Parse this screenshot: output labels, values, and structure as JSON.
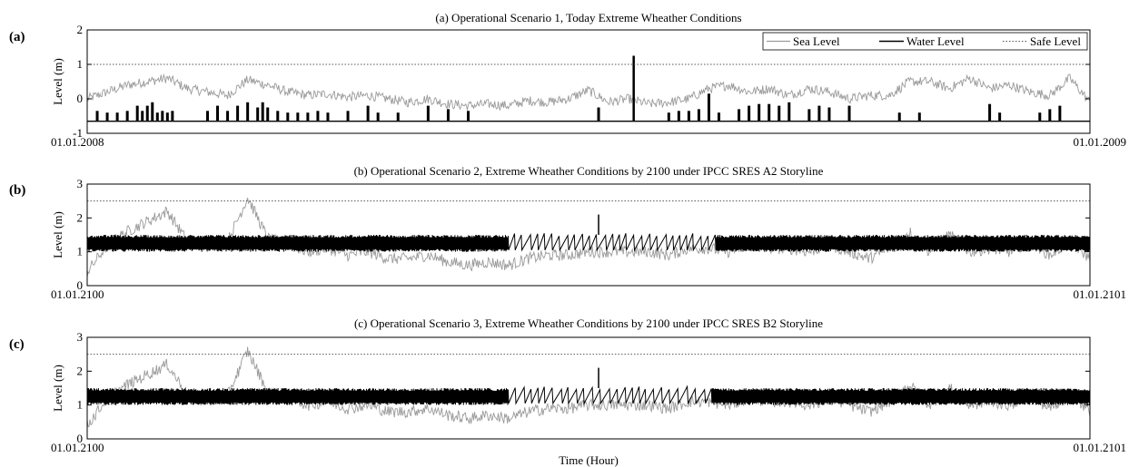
{
  "xlabel": "Time (Hour)",
  "legend": {
    "sea": "Sea Level",
    "water": "Water Level",
    "safe": "Safe Level"
  },
  "colors": {
    "sea": "#9a9a9a",
    "water": "#000000",
    "safe": "#555555"
  },
  "chart_data": [
    {
      "type": "line",
      "panel_label": "(a)",
      "title": "(a) Operational Scenario 1, Today Extreme Wheather Conditions",
      "ylabel": "Level (m)",
      "ylim": [
        -1,
        2
      ],
      "yticks": [
        "-1",
        "0",
        "1",
        "2"
      ],
      "x_start_label": "01.01.2008",
      "x_end_label": "01.01.2009",
      "safe_level": 1.0,
      "legend_position": "top-right",
      "series": [
        {
          "name": "Sea Level",
          "style": "gray-solid",
          "x": [
            0.0,
            0.02,
            0.04,
            0.06,
            0.08,
            0.1,
            0.12,
            0.14,
            0.16,
            0.18,
            0.2,
            0.22,
            0.24,
            0.26,
            0.28,
            0.3,
            0.32,
            0.34,
            0.36,
            0.38,
            0.4,
            0.42,
            0.44,
            0.46,
            0.48,
            0.5,
            0.52,
            0.54,
            0.56,
            0.58,
            0.6,
            0.62,
            0.64,
            0.66,
            0.68,
            0.7,
            0.72,
            0.74,
            0.76,
            0.78,
            0.8,
            0.82,
            0.84,
            0.86,
            0.88,
            0.9,
            0.92,
            0.94,
            0.96,
            0.98,
            1.0
          ],
          "values": [
            0.0,
            0.2,
            0.4,
            0.5,
            0.6,
            0.3,
            0.2,
            0.1,
            0.55,
            0.4,
            0.2,
            0.1,
            0.15,
            0.05,
            0.1,
            0.0,
            -0.1,
            0.0,
            -0.15,
            -0.2,
            -0.15,
            -0.2,
            -0.05,
            -0.1,
            0.0,
            0.25,
            -0.1,
            0.0,
            -0.15,
            -0.1,
            0.0,
            0.3,
            0.4,
            0.2,
            0.3,
            0.1,
            0.3,
            0.2,
            0.0,
            0.1,
            0.1,
            0.5,
            0.5,
            0.3,
            0.6,
            0.3,
            0.4,
            0.2,
            0.1,
            0.6,
            -0.1
          ]
        },
        {
          "name": "Water Level",
          "style": "black-solid",
          "baseline": -0.65,
          "spikes": [
            {
              "x": 0.01,
              "y": -0.35
            },
            {
              "x": 0.02,
              "y": -0.4
            },
            {
              "x": 0.03,
              "y": -0.4
            },
            {
              "x": 0.04,
              "y": -0.35
            },
            {
              "x": 0.05,
              "y": -0.2
            },
            {
              "x": 0.055,
              "y": -0.35
            },
            {
              "x": 0.06,
              "y": -0.2
            },
            {
              "x": 0.065,
              "y": -0.1
            },
            {
              "x": 0.07,
              "y": -0.4
            },
            {
              "x": 0.075,
              "y": -0.35
            },
            {
              "x": 0.08,
              "y": -0.4
            },
            {
              "x": 0.085,
              "y": -0.35
            },
            {
              "x": 0.12,
              "y": -0.35
            },
            {
              "x": 0.13,
              "y": -0.2
            },
            {
              "x": 0.14,
              "y": -0.35
            },
            {
              "x": 0.15,
              "y": -0.2
            },
            {
              "x": 0.16,
              "y": -0.1
            },
            {
              "x": 0.17,
              "y": -0.25
            },
            {
              "x": 0.175,
              "y": -0.1
            },
            {
              "x": 0.18,
              "y": -0.25
            },
            {
              "x": 0.19,
              "y": -0.35
            },
            {
              "x": 0.2,
              "y": -0.4
            },
            {
              "x": 0.21,
              "y": -0.4
            },
            {
              "x": 0.22,
              "y": -0.4
            },
            {
              "x": 0.23,
              "y": -0.35
            },
            {
              "x": 0.24,
              "y": -0.4
            },
            {
              "x": 0.26,
              "y": -0.35
            },
            {
              "x": 0.28,
              "y": -0.2
            },
            {
              "x": 0.29,
              "y": -0.4
            },
            {
              "x": 0.31,
              "y": -0.4
            },
            {
              "x": 0.34,
              "y": -0.2
            },
            {
              "x": 0.36,
              "y": -0.3
            },
            {
              "x": 0.38,
              "y": -0.35
            },
            {
              "x": 0.51,
              "y": -0.25
            },
            {
              "x": 0.545,
              "y": 1.25
            },
            {
              "x": 0.58,
              "y": -0.4
            },
            {
              "x": 0.59,
              "y": -0.35
            },
            {
              "x": 0.6,
              "y": -0.35
            },
            {
              "x": 0.61,
              "y": -0.3
            },
            {
              "x": 0.62,
              "y": 0.15
            },
            {
              "x": 0.63,
              "y": -0.4
            },
            {
              "x": 0.65,
              "y": -0.3
            },
            {
              "x": 0.66,
              "y": -0.2
            },
            {
              "x": 0.67,
              "y": -0.15
            },
            {
              "x": 0.68,
              "y": -0.15
            },
            {
              "x": 0.69,
              "y": -0.2
            },
            {
              "x": 0.7,
              "y": -0.1
            },
            {
              "x": 0.72,
              "y": -0.3
            },
            {
              "x": 0.73,
              "y": -0.2
            },
            {
              "x": 0.74,
              "y": -0.25
            },
            {
              "x": 0.76,
              "y": -0.2
            },
            {
              "x": 0.81,
              "y": -0.4
            },
            {
              "x": 0.83,
              "y": -0.4
            },
            {
              "x": 0.9,
              "y": -0.15
            },
            {
              "x": 0.91,
              "y": -0.4
            },
            {
              "x": 0.95,
              "y": -0.4
            },
            {
              "x": 0.96,
              "y": -0.3
            },
            {
              "x": 0.97,
              "y": -0.2
            }
          ]
        },
        {
          "name": "Safe Level",
          "style": "dotted",
          "values": [
            1.0,
            1.0
          ]
        }
      ]
    },
    {
      "type": "line",
      "panel_label": "(b)",
      "title": "(b) Operational Scenario 2, Extreme Wheather Conditions by 2100 under IPCC SRES A2 Storyline",
      "ylabel": "Level (m)",
      "ylim": [
        0,
        3
      ],
      "yticks": [
        "0",
        "1",
        "2",
        "3"
      ],
      "x_start_label": "01.01.2100",
      "x_end_label": "01.01.2101",
      "safe_level": 2.5,
      "series": [
        {
          "name": "Sea Level",
          "style": "gray-solid",
          "x": [
            0.0,
            0.02,
            0.04,
            0.06,
            0.08,
            0.1,
            0.12,
            0.14,
            0.16,
            0.18,
            0.2,
            0.22,
            0.24,
            0.26,
            0.28,
            0.3,
            0.32,
            0.34,
            0.36,
            0.38,
            0.4,
            0.42,
            0.44,
            0.46,
            0.48,
            0.5,
            0.52,
            0.54,
            0.56,
            0.58,
            0.6,
            0.62,
            0.64,
            0.66,
            0.68,
            0.7,
            0.72,
            0.74,
            0.76,
            0.78,
            0.8,
            0.82,
            0.84,
            0.86,
            0.88,
            0.9,
            0.92,
            0.94,
            0.96,
            0.98,
            1.0
          ],
          "values": [
            0.4,
            1.2,
            1.6,
            1.9,
            2.2,
            1.3,
            1.2,
            1.3,
            2.6,
            1.4,
            1.2,
            1.0,
            1.1,
            0.9,
            1.0,
            0.8,
            0.8,
            0.9,
            0.7,
            0.6,
            0.7,
            0.6,
            0.8,
            0.9,
            0.9,
            1.0,
            1.0,
            1.0,
            1.0,
            0.9,
            1.1,
            1.1,
            1.0,
            1.2,
            1.1,
            1.1,
            1.0,
            1.2,
            1.0,
            0.8,
            1.1,
            1.6,
            1.0,
            1.5,
            1.0,
            1.1,
            1.0,
            1.3,
            0.9,
            1.3,
            0.8
          ]
        },
        {
          "name": "Water Level",
          "style": "black-band",
          "band": [
            1.0,
            1.5
          ],
          "saw_region": [
            0.42,
            0.62
          ],
          "peak": {
            "x": 0.51,
            "y": 2.1
          }
        },
        {
          "name": "Safe Level",
          "style": "dotted",
          "values": [
            2.5,
            2.5
          ]
        }
      ]
    },
    {
      "type": "line",
      "panel_label": "(c)",
      "title": "(c) Operational Scenario 3, Extreme Wheather Conditions by 2100 under IPCC SRES B2 Storyline",
      "ylabel": "Level (m)",
      "ylim": [
        0,
        3
      ],
      "yticks": [
        "0",
        "1",
        "2",
        "3"
      ],
      "x_start_label": "01.01.2100",
      "x_end_label": "01.01.2101",
      "safe_level": 2.5,
      "series": [
        {
          "name": "Sea Level",
          "style": "gray-solid",
          "x": [
            0.0,
            0.02,
            0.04,
            0.06,
            0.08,
            0.1,
            0.12,
            0.14,
            0.16,
            0.18,
            0.2,
            0.22,
            0.24,
            0.26,
            0.28,
            0.3,
            0.32,
            0.34,
            0.36,
            0.38,
            0.4,
            0.42,
            0.44,
            0.46,
            0.48,
            0.5,
            0.52,
            0.54,
            0.56,
            0.58,
            0.6,
            0.62,
            0.64,
            0.66,
            0.68,
            0.7,
            0.72,
            0.74,
            0.76,
            0.78,
            0.8,
            0.82,
            0.84,
            0.86,
            0.88,
            0.9,
            0.92,
            0.94,
            0.96,
            0.98,
            1.0
          ],
          "values": [
            0.4,
            1.2,
            1.6,
            1.9,
            2.2,
            1.3,
            1.2,
            1.3,
            2.6,
            1.4,
            1.2,
            1.0,
            1.1,
            0.9,
            1.0,
            0.8,
            0.8,
            0.9,
            0.7,
            0.6,
            0.7,
            0.6,
            0.8,
            0.9,
            0.9,
            1.0,
            1.0,
            1.0,
            1.0,
            0.9,
            1.1,
            1.1,
            1.0,
            1.2,
            1.1,
            1.1,
            1.0,
            1.2,
            1.0,
            0.8,
            1.1,
            1.6,
            1.0,
            1.5,
            1.0,
            1.1,
            1.0,
            1.3,
            0.9,
            1.3,
            0.8
          ]
        },
        {
          "name": "Water Level",
          "style": "black-band",
          "band": [
            1.0,
            1.5
          ],
          "saw_region": [
            0.42,
            0.62
          ],
          "peak": {
            "x": 0.51,
            "y": 2.1
          }
        },
        {
          "name": "Safe Level",
          "style": "dotted",
          "values": [
            2.5,
            2.5
          ]
        }
      ]
    }
  ]
}
